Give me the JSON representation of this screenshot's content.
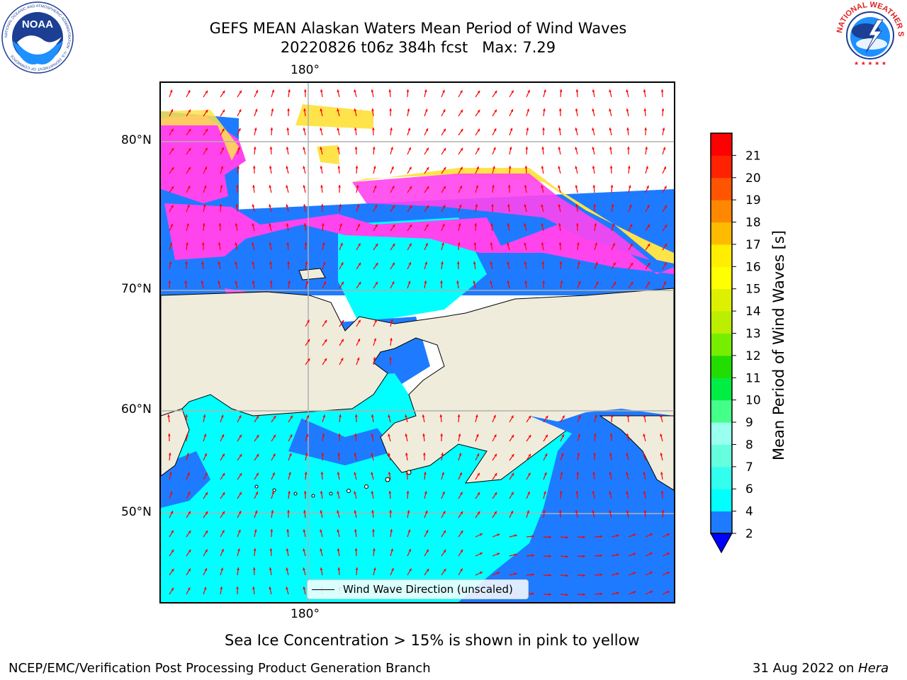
{
  "title": {
    "line1": "GEFS MEAN Alaskan Waters Mean Period of Wind Waves",
    "line2": "20220826 t06z 384h fcst   Max: 7.29"
  },
  "logos": {
    "left": "noaa-logo",
    "right": "national-weather-service-logo",
    "noaa_text": "NOAA",
    "noaa_ring_text": "NATIONAL OCEANIC AND ATMOSPHERIC ADMINISTRATION · U.S. DEPARTMENT OF COMMERCE",
    "nws_ring_text": "NATIONAL WEATHER SERVICE"
  },
  "map": {
    "lon_label_top": "180°",
    "lon_label_bottom": "180°",
    "lat_labels": [
      "80°N",
      "70°N",
      "60°N",
      "50°N"
    ],
    "legend": "Wind Wave Direction (unscaled)",
    "colors": {
      "land": "#efecdc",
      "ocean_low": "#1e7bff",
      "ocean_mid": "#00ffff",
      "ocean_light": "#44ffee",
      "ice_pink": "#ff44ee",
      "ice_yellow": "#ffe34a",
      "arrow": "#ff0000",
      "grid": "#b0b0b0"
    }
  },
  "colorbar": {
    "label": "Mean Period of Wind Waves [s]",
    "ticks": [
      "2",
      "4",
      "6",
      "7",
      "8",
      "9",
      "10",
      "11",
      "12",
      "13",
      "14",
      "15",
      "16",
      "17",
      "18",
      "19",
      "20",
      "21"
    ],
    "colors": [
      "#1e7bff",
      "#00ffff",
      "#33ffee",
      "#66ffdd",
      "#99ffee",
      "#44ff88",
      "#00ee44",
      "#22dd00",
      "#77ee00",
      "#bbee00",
      "#ddf000",
      "#ffff00",
      "#ffee00",
      "#ffbb00",
      "#ff8800",
      "#ff5500",
      "#ff2200",
      "#ff0000"
    ]
  },
  "ice_note": "Sea Ice Concentration > 15% is shown in pink to yellow",
  "footer": {
    "left": "NCEP/EMC/Verification Post Processing Product Generation Branch",
    "right_prefix": "31 Aug 2022 on ",
    "right_host": "Hera"
  }
}
